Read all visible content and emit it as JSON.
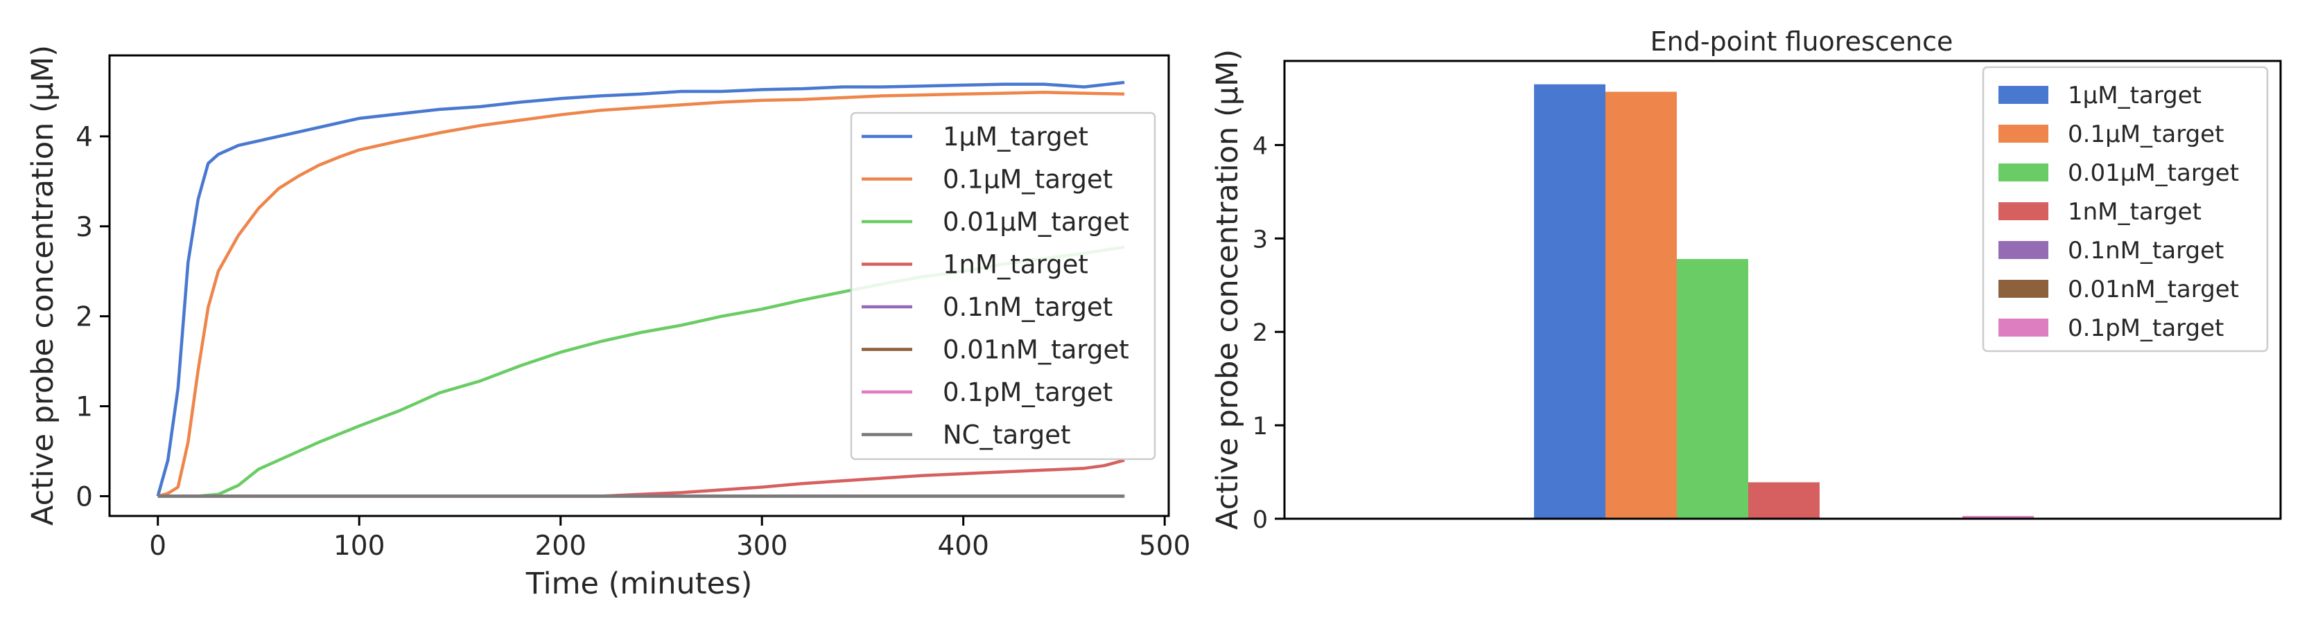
{
  "chart_data": [
    {
      "type": "line",
      "title": "",
      "xlabel": "Time (minutes)",
      "ylabel": "Active probe concentration (μM)",
      "xlim": [
        -24,
        502
      ],
      "ylim": [
        -0.22,
        4.9
      ],
      "xticks": [
        0,
        100,
        200,
        300,
        400,
        500
      ],
      "yticks": [
        0,
        1,
        2,
        3,
        4
      ],
      "legend_position": "center-right",
      "grid": false,
      "series": [
        {
          "name": "1μM_target",
          "color": "#4878d0",
          "x": [
            0,
            5,
            10,
            15,
            20,
            25,
            30,
            35,
            40,
            50,
            60,
            80,
            100,
            120,
            140,
            160,
            180,
            200,
            220,
            240,
            260,
            280,
            300,
            320,
            340,
            360,
            380,
            400,
            420,
            440,
            460,
            480
          ],
          "y": [
            0,
            0.4,
            1.2,
            2.6,
            3.3,
            3.7,
            3.8,
            3.85,
            3.9,
            3.95,
            4.0,
            4.1,
            4.2,
            4.25,
            4.3,
            4.33,
            4.38,
            4.42,
            4.45,
            4.47,
            4.5,
            4.5,
            4.52,
            4.53,
            4.55,
            4.55,
            4.56,
            4.57,
            4.58,
            4.58,
            4.55,
            4.6
          ]
        },
        {
          "name": "0.1μM_target",
          "color": "#ee854a",
          "x": [
            0,
            5,
            10,
            15,
            20,
            25,
            30,
            40,
            50,
            60,
            70,
            80,
            90,
            100,
            120,
            140,
            160,
            180,
            200,
            220,
            240,
            260,
            280,
            300,
            320,
            340,
            360,
            380,
            400,
            420,
            440,
            460,
            480
          ],
          "y": [
            0,
            0.03,
            0.1,
            0.6,
            1.4,
            2.1,
            2.5,
            2.9,
            3.2,
            3.42,
            3.56,
            3.68,
            3.77,
            3.85,
            3.95,
            4.04,
            4.12,
            4.18,
            4.24,
            4.29,
            4.32,
            4.35,
            4.38,
            4.4,
            4.41,
            4.43,
            4.45,
            4.46,
            4.47,
            4.48,
            4.49,
            4.48,
            4.47
          ]
        },
        {
          "name": "0.01μM_target",
          "color": "#6acc64",
          "x": [
            0,
            20,
            30,
            40,
            50,
            60,
            80,
            100,
            120,
            140,
            160,
            180,
            200,
            220,
            240,
            260,
            280,
            300,
            320,
            340,
            360,
            380,
            400,
            420,
            440,
            460,
            480
          ],
          "y": [
            0,
            0,
            0.02,
            0.12,
            0.3,
            0.4,
            0.6,
            0.78,
            0.95,
            1.15,
            1.28,
            1.45,
            1.6,
            1.72,
            1.82,
            1.9,
            2.0,
            2.08,
            2.18,
            2.27,
            2.36,
            2.44,
            2.5,
            2.58,
            2.64,
            2.7,
            2.77
          ]
        },
        {
          "name": "1nM_target",
          "color": "#d65f5f",
          "x": [
            0,
            220,
            240,
            260,
            280,
            300,
            320,
            340,
            360,
            380,
            400,
            420,
            440,
            460,
            470,
            480
          ],
          "y": [
            0,
            0,
            0.02,
            0.04,
            0.07,
            0.1,
            0.14,
            0.17,
            0.2,
            0.23,
            0.25,
            0.27,
            0.29,
            0.31,
            0.34,
            0.4
          ]
        },
        {
          "name": "0.1nM_target",
          "color": "#956cb4",
          "x": [
            0,
            480
          ],
          "y": [
            0,
            0
          ]
        },
        {
          "name": "0.01nM_target",
          "color": "#8c613c",
          "x": [
            0,
            480
          ],
          "y": [
            0,
            0
          ]
        },
        {
          "name": "0.1pM_target",
          "color": "#dc7ec0",
          "x": [
            0,
            480
          ],
          "y": [
            0,
            0
          ]
        },
        {
          "name": "NC_target",
          "color": "#797979",
          "x": [
            0,
            480
          ],
          "y": [
            0,
            0
          ]
        }
      ]
    },
    {
      "type": "bar",
      "title": "End-point fluorescence",
      "xlabel": "",
      "ylabel": "Active probe concentration (μM)",
      "ylim": [
        0,
        4.9
      ],
      "yticks": [
        0,
        1,
        2,
        3,
        4
      ],
      "legend_position": "top-right",
      "grid": false,
      "series": [
        {
          "name": "1μM_target",
          "color": "#4878d0",
          "value": 4.65
        },
        {
          "name": "0.1μM_target",
          "color": "#ee854a",
          "value": 4.57
        },
        {
          "name": "0.01μM_target",
          "color": "#6acc64",
          "value": 2.78
        },
        {
          "name": "1nM_target",
          "color": "#d65f5f",
          "value": 0.39
        },
        {
          "name": "0.1nM_target",
          "color": "#956cb4",
          "value": 0.0
        },
        {
          "name": "0.01nM_target",
          "color": "#8c613c",
          "value": 0.0
        },
        {
          "name": "0.1pM_target",
          "color": "#dc7ec0",
          "value": 0.03
        }
      ]
    }
  ]
}
